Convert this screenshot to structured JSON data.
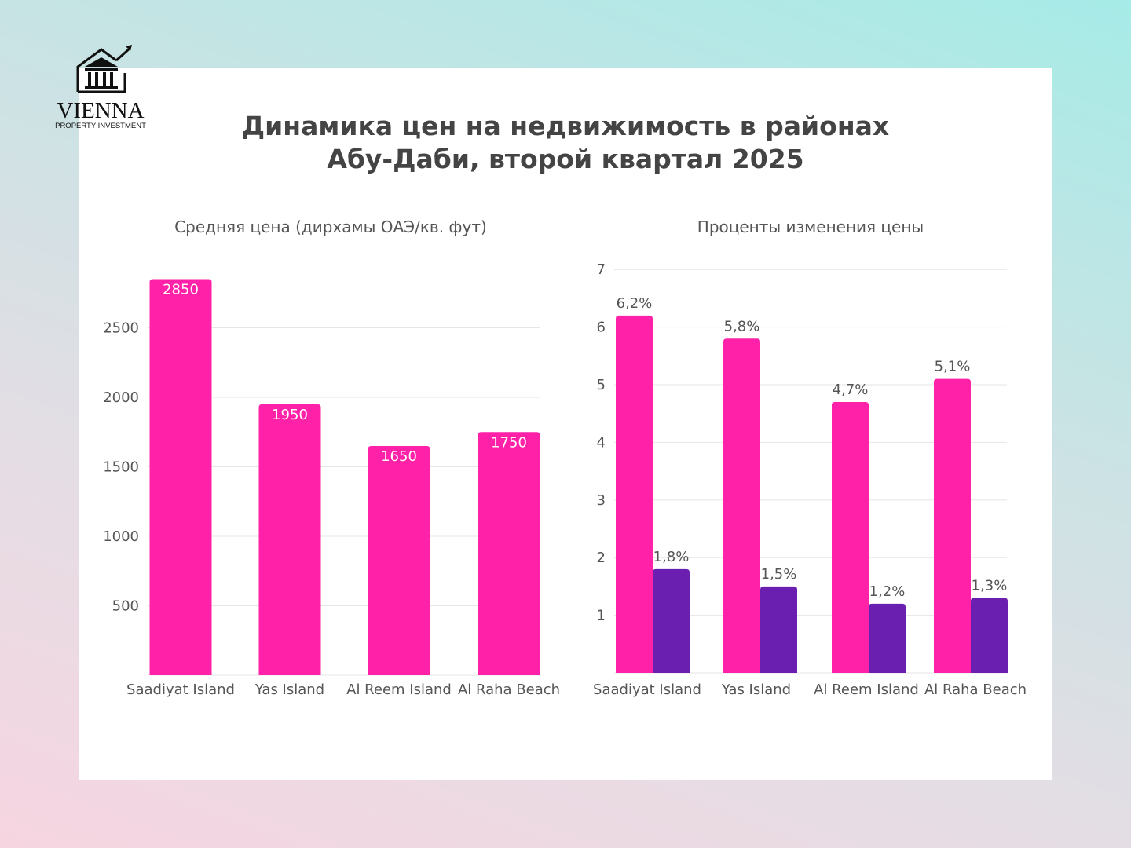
{
  "logo": {
    "name": "VIENNA",
    "tagline": "PROPERTY INVESTMENT"
  },
  "title": {
    "line1": "Динамика цен на недвижимость в районах",
    "line2": "Абу-Даби, второй квартал 2025"
  },
  "colors": {
    "pink": "#ff21a8",
    "purple": "#6a1fb0",
    "grid": "#e6e6e6"
  },
  "chart_data": [
    {
      "type": "bar",
      "title": "Средняя цена (дирхамы ОАЭ/кв. фут)",
      "categories": [
        "Saadiyat Island",
        "Yas Island",
        "Al Reem Island",
        "Al Raha Beach"
      ],
      "values": [
        2850,
        1950,
        1650,
        1750
      ],
      "data_labels": [
        "2850",
        "1950",
        "1650",
        "1750"
      ],
      "yticks": [
        "500",
        "1000",
        "1500",
        "2000",
        "2500"
      ],
      "ylim": [
        0,
        2850
      ],
      "grid": true
    },
    {
      "type": "bar",
      "title": "Проценты изменения цены",
      "categories": [
        "Saadiyat Island",
        "Yas Island",
        "Al Reem Island",
        "Al Raha Beach"
      ],
      "series": [
        {
          "values": [
            6.2,
            5.8,
            4.7,
            5.1
          ],
          "data_labels": [
            "6,2%",
            "5,8%",
            "4,7%",
            "5,1%"
          ],
          "color": "#ff21a8"
        },
        {
          "values": [
            1.8,
            1.5,
            1.2,
            1.3
          ],
          "data_labels": [
            "1,8%",
            "1,5%",
            "1,2%",
            "1,3%"
          ],
          "color": "#6a1fb0"
        }
      ],
      "yticks": [
        "1",
        "2",
        "3",
        "4",
        "5",
        "6",
        "7"
      ],
      "ylim": [
        0,
        7
      ],
      "grid": true
    }
  ]
}
